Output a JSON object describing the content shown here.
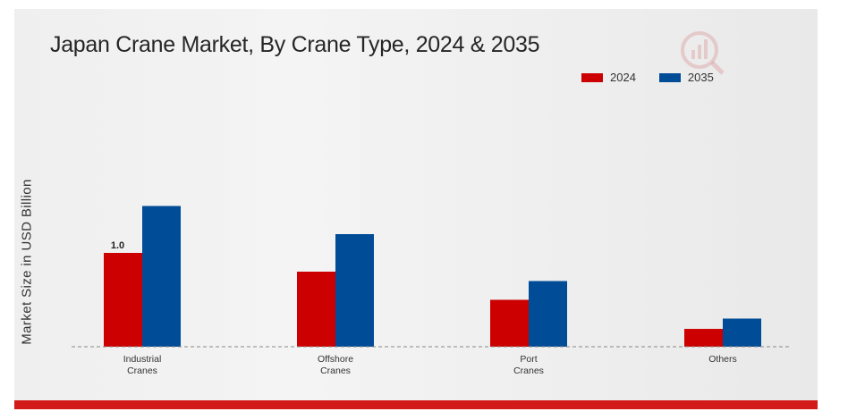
{
  "chart_data": {
    "type": "bar",
    "title": "Japan Crane Market, By Crane Type, 2024 & 2035",
    "xlabel": "",
    "ylabel": "Market Size in USD Billion",
    "categories": [
      [
        "Industrial",
        "Cranes"
      ],
      [
        "Offshore",
        "Cranes"
      ],
      [
        "Port",
        "Cranes"
      ],
      [
        "Others"
      ]
    ],
    "series": [
      {
        "name": "2024",
        "color": "#cc0000",
        "values": [
          1.0,
          0.8,
          0.5,
          0.19
        ]
      },
      {
        "name": "2035",
        "color": "#004c97",
        "values": [
          1.5,
          1.2,
          0.7,
          0.3
        ]
      }
    ],
    "data_labels": [
      {
        "series": 0,
        "category": 0,
        "text": "1.0"
      }
    ],
    "ylim": [
      0,
      2.0
    ],
    "grid": false,
    "legend_position": "top-right"
  },
  "colors": {
    "accent_bar": "#d21a1a",
    "logo": "#c9303a"
  },
  "logo_icon": "magnifier-bar-chart-icon"
}
